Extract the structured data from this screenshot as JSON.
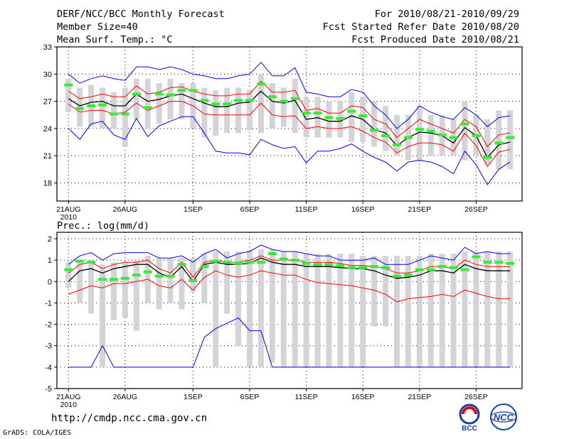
{
  "header": {
    "title": "DERF/NCC/BCC Monthly Forecast",
    "member_size": "Member Size=40",
    "variable": "Mean Surf. Temp.: °C",
    "forecast_period": "For 2010/08/21-2010/09/29",
    "start_ref": "Fcst Started Refer Date 2010/08/20",
    "produced": "Fcst Produced Date 2010/08/21"
  },
  "footer": {
    "url": "http://cmdp.ncc.cma.gov.cn",
    "credit": "GrADS: COLA/IGES",
    "logo_left_text": "BCC",
    "logo_right_text": "NCC"
  },
  "colors": {
    "envelope": "#0000ff",
    "spread": "#ff0000",
    "mean": "#000000",
    "bcc": "#33ee33",
    "bar": "#d4d4d8",
    "grid": "#000000"
  },
  "chart_data": [
    {
      "type": "line",
      "title": "Mean Surf. Temp.: °C",
      "ylim": [
        16,
        33
      ],
      "yticks": [
        18,
        21,
        24,
        27,
        30,
        33
      ],
      "xticks": [
        {
          "day": 0,
          "label": "21AUG"
        },
        {
          "day": 5,
          "label": "26AUG"
        },
        {
          "day": 11,
          "label": "1SEP"
        },
        {
          "day": 16,
          "label": "6SEP"
        },
        {
          "day": 21,
          "label": "11SEP"
        },
        {
          "day": 26,
          "label": "16SEP"
        },
        {
          "day": 31,
          "label": "21SEP"
        },
        {
          "day": 36,
          "label": "26SEP"
        }
      ],
      "year_label": "2010",
      "bar_low": [
        25.8,
        24.2,
        24.2,
        24.0,
        24.0,
        22.0,
        25.0,
        24.0,
        24.5,
        25.0,
        25.0,
        24.0,
        23.0,
        23.2,
        23.5,
        23.5,
        23.8,
        23.5,
        24.0,
        24.2,
        23.5,
        23.0,
        23.0,
        23.0,
        23.0,
        22.5,
        22.5,
        22.0,
        21.5,
        21.0,
        20.5,
        20.5,
        21.0,
        21.0,
        21.0,
        20.5,
        21.0,
        20.0,
        19.5,
        19.5
      ],
      "bar_high": [
        29.5,
        28.5,
        28.8,
        28.5,
        28.0,
        28.5,
        29.5,
        29.5,
        29.0,
        29.5,
        29.0,
        29.0,
        28.5,
        28.2,
        28.5,
        28.5,
        28.3,
        30.0,
        29.0,
        28.5,
        29.5,
        27.5,
        27.5,
        27.0,
        27.0,
        28.0,
        27.5,
        27.0,
        26.5,
        25.5,
        25.5,
        26.5,
        25.5,
        25.5,
        25.0,
        27.0,
        25.5,
        25.0,
        26.0,
        26.0
      ],
      "series": [
        {
          "name": "ensemble max",
          "color": "#0000ff",
          "values": [
            30.0,
            29.0,
            29.5,
            29.8,
            29.5,
            29.3,
            30.8,
            30.8,
            30.5,
            30.8,
            30.5,
            30.0,
            29.8,
            29.5,
            29.5,
            29.8,
            30.0,
            31.3,
            29.8,
            29.8,
            30.7,
            28.0,
            27.8,
            27.5,
            27.5,
            28.3,
            28.0,
            26.5,
            25.5,
            24.0,
            25.0,
            26.5,
            25.8,
            25.3,
            25.0,
            26.3,
            25.5,
            24.2,
            25.2,
            25.4
          ]
        },
        {
          "name": "mean + spread",
          "color": "#ff0000",
          "values": [
            28.1,
            27.3,
            27.5,
            27.8,
            27.5,
            27.5,
            28.7,
            27.8,
            28.0,
            28.5,
            28.6,
            28.1,
            27.8,
            27.6,
            27.6,
            27.8,
            27.8,
            29.2,
            28.0,
            28.0,
            28.2,
            26.0,
            26.2,
            25.7,
            25.7,
            26.5,
            26.3,
            25.0,
            24.5,
            23.0,
            24.0,
            25.0,
            24.5,
            24.0,
            23.5,
            25.0,
            24.2,
            22.0,
            23.3,
            23.5
          ]
        },
        {
          "name": "ensemble mean",
          "color": "#000000",
          "values": [
            27.3,
            26.5,
            26.9,
            27.0,
            26.5,
            26.5,
            27.8,
            27.0,
            27.2,
            27.6,
            27.8,
            27.3,
            26.8,
            26.4,
            26.4,
            26.8,
            26.9,
            28.1,
            27.0,
            26.8,
            27.1,
            25.0,
            25.2,
            24.8,
            24.8,
            25.4,
            25.0,
            23.9,
            23.5,
            22.1,
            23.0,
            23.6,
            23.5,
            23.2,
            22.4,
            24.1,
            23.2,
            20.8,
            22.2,
            22.5
          ]
        },
        {
          "name": "mean - spread",
          "color": "#ff0000",
          "values": [
            26.7,
            25.8,
            26.0,
            26.0,
            25.6,
            25.8,
            26.8,
            26.0,
            26.5,
            27.0,
            27.0,
            26.5,
            25.6,
            25.5,
            25.5,
            25.5,
            25.5,
            26.8,
            25.5,
            25.3,
            25.4,
            24.0,
            24.2,
            24.0,
            24.0,
            24.2,
            23.7,
            23.0,
            22.5,
            21.3,
            22.0,
            22.4,
            22.4,
            22.2,
            21.5,
            23.5,
            22.1,
            19.8,
            21.4,
            21.7
          ]
        },
        {
          "name": "ensemble min",
          "color": "#0000ff",
          "values": [
            24.0,
            22.8,
            24.5,
            24.8,
            23.3,
            22.8,
            25.1,
            23.1,
            24.3,
            24.8,
            25.3,
            25.3,
            23.5,
            21.5,
            21.3,
            21.3,
            21.1,
            22.8,
            22.2,
            21.8,
            22.0,
            20.2,
            21.5,
            21.5,
            21.8,
            22.3,
            21.5,
            20.8,
            20.3,
            19.3,
            20.3,
            20.5,
            20.3,
            19.8,
            19.0,
            21.5,
            20.0,
            17.8,
            19.5,
            20.3
          ]
        }
      ],
      "bcc_markers": [
        28.8,
        26.2,
        26.5,
        26.6,
        25.6,
        25.6,
        27.8,
        26.3,
        27.8,
        27.7,
        28.2,
        28.2,
        27.1,
        26.7,
        26.7,
        27.1,
        27.1,
        28.9,
        27.5,
        27.0,
        27.3,
        25.7,
        25.7,
        25.2,
        25.1,
        25.9,
        25.4,
        23.8,
        23.2,
        22.2,
        23.0,
        23.9,
        23.7,
        23.3,
        23.0,
        24.5,
        23.2,
        20.8,
        22.4,
        23.0
      ]
    },
    {
      "type": "line",
      "title": "Prec.: log(mm/d)",
      "ylim": [
        -5,
        2.3
      ],
      "yticks": [
        -5,
        -4,
        -3,
        -2,
        -1,
        0,
        1,
        2
      ],
      "xticks": [
        {
          "day": 0,
          "label": "21AUG"
        },
        {
          "day": 5,
          "label": "26AUG"
        },
        {
          "day": 11,
          "label": "1SEP"
        },
        {
          "day": 16,
          "label": "6SEP"
        },
        {
          "day": 21,
          "label": "11SEP"
        },
        {
          "day": 26,
          "label": "16SEP"
        },
        {
          "day": 31,
          "label": "21SEP"
        },
        {
          "day": 36,
          "label": "26SEP"
        }
      ],
      "year_label": "2010",
      "bar_low": [
        -0.3,
        -1.0,
        -1.5,
        -4.0,
        -1.8,
        -1.7,
        -2.3,
        -1.0,
        -1.3,
        -1.0,
        -1.3,
        -0.5,
        -1.0,
        -4.0,
        -1.5,
        -3.0,
        -4.0,
        -4.0,
        -3.8,
        -4.0,
        -4.0,
        -4.0,
        -4.0,
        -4.0,
        -4.0,
        -4.0,
        -4.0,
        -2.1,
        -2.1,
        -4.0,
        -4.0,
        -4.0,
        -4.0,
        -4.0,
        -4.0,
        -4.0,
        -4.0,
        -4.0,
        -4.0,
        -4.0
      ],
      "bar_high": [
        0.9,
        1.0,
        1.0,
        0.8,
        0.9,
        0.9,
        1.0,
        1.2,
        1.1,
        1.1,
        1.1,
        1.1,
        1.3,
        1.4,
        1.4,
        1.4,
        1.5,
        1.5,
        1.5,
        1.4,
        1.4,
        1.3,
        1.3,
        1.3,
        1.3,
        1.3,
        1.2,
        1.2,
        1.2,
        1.2,
        1.2,
        1.2,
        1.3,
        1.3,
        1.3,
        1.4,
        1.4,
        1.4,
        1.4,
        1.4
      ],
      "series": [
        {
          "name": "ensemble max",
          "color": "#0000ff",
          "values": [
            0.8,
            1.2,
            1.35,
            1.0,
            1.3,
            1.35,
            1.35,
            1.35,
            1.1,
            1.1,
            1.2,
            0.9,
            1.3,
            1.5,
            1.1,
            1.3,
            1.4,
            1.7,
            1.5,
            1.4,
            1.4,
            1.3,
            1.2,
            1.2,
            1.0,
            1.0,
            1.0,
            1.1,
            0.8,
            0.8,
            0.8,
            1.0,
            1.2,
            1.1,
            1.0,
            1.6,
            1.3,
            1.4,
            1.3,
            1.3
          ]
        },
        {
          "name": "mean + spread",
          "color": "#ff0000",
          "values": [
            0.4,
            0.8,
            0.9,
            0.6,
            0.8,
            0.9,
            0.9,
            1.0,
            0.6,
            0.4,
            0.9,
            0.2,
            0.9,
            1.0,
            0.9,
            0.9,
            1.0,
            1.2,
            1.0,
            1.0,
            1.0,
            0.9,
            0.9,
            0.9,
            0.85,
            0.75,
            0.75,
            0.7,
            0.6,
            0.4,
            0.4,
            0.5,
            0.7,
            0.7,
            0.6,
            1.0,
            0.8,
            0.7,
            0.7,
            0.7
          ]
        },
        {
          "name": "ensemble mean",
          "color": "#000000",
          "values": [
            0.0,
            0.5,
            0.6,
            0.4,
            0.6,
            0.7,
            0.8,
            0.8,
            0.4,
            0.2,
            0.7,
            0.0,
            0.8,
            0.9,
            0.8,
            0.8,
            0.85,
            1.1,
            0.9,
            0.8,
            0.8,
            0.7,
            0.7,
            0.7,
            0.65,
            0.6,
            0.6,
            0.5,
            0.3,
            0.15,
            0.2,
            0.3,
            0.5,
            0.5,
            0.4,
            0.8,
            0.6,
            0.5,
            0.5,
            0.5
          ]
        },
        {
          "name": "mean - spread",
          "color": "#ff0000",
          "values": [
            -0.6,
            -0.4,
            -0.2,
            -0.3,
            -0.1,
            -0.1,
            0.0,
            0.1,
            -0.2,
            -0.3,
            0.1,
            -0.4,
            0.2,
            0.5,
            0.3,
            0.2,
            0.3,
            0.5,
            0.4,
            0.3,
            0.3,
            0.1,
            -0.05,
            -0.1,
            -0.15,
            -0.2,
            -0.3,
            -0.4,
            -0.6,
            -0.95,
            -0.8,
            -0.75,
            -0.7,
            -0.6,
            -0.7,
            -0.4,
            -0.55,
            -0.7,
            -0.8,
            -0.8
          ]
        },
        {
          "name": "ensemble min",
          "color": "#0000ff",
          "values": [
            -4.0,
            -4.0,
            -4.0,
            -3.0,
            -4.0,
            -4.0,
            -4.0,
            -4.0,
            -4.0,
            -4.0,
            -4.0,
            -4.0,
            -2.6,
            -2.2,
            -1.95,
            -1.7,
            -2.3,
            -2.3,
            -4.0,
            -4.0,
            -4.0,
            -4.0,
            -4.0,
            -4.0,
            -4.0,
            -4.0,
            -4.0,
            -4.0,
            -4.0,
            -4.0,
            -4.0,
            -4.0,
            -4.0,
            -4.0,
            -4.0,
            -4.0,
            -4.0,
            -4.0,
            -4.0,
            -4.0
          ]
        }
      ],
      "bcc_markers": [
        0.55,
        0.95,
        0.9,
        0.1,
        0.1,
        0.15,
        0.3,
        0.45,
        0.25,
        0.25,
        0.8,
        0.05,
        0.7,
        0.95,
        0.9,
        0.85,
        0.9,
        0.9,
        1.3,
        1.05,
        1.0,
        0.85,
        0.8,
        0.8,
        0.75,
        0.65,
        0.65,
        0.7,
        0.65,
        0.25,
        0.3,
        0.55,
        0.55,
        0.7,
        0.65,
        0.55,
        1.15,
        0.9,
        0.9,
        0.85
      ]
    }
  ]
}
